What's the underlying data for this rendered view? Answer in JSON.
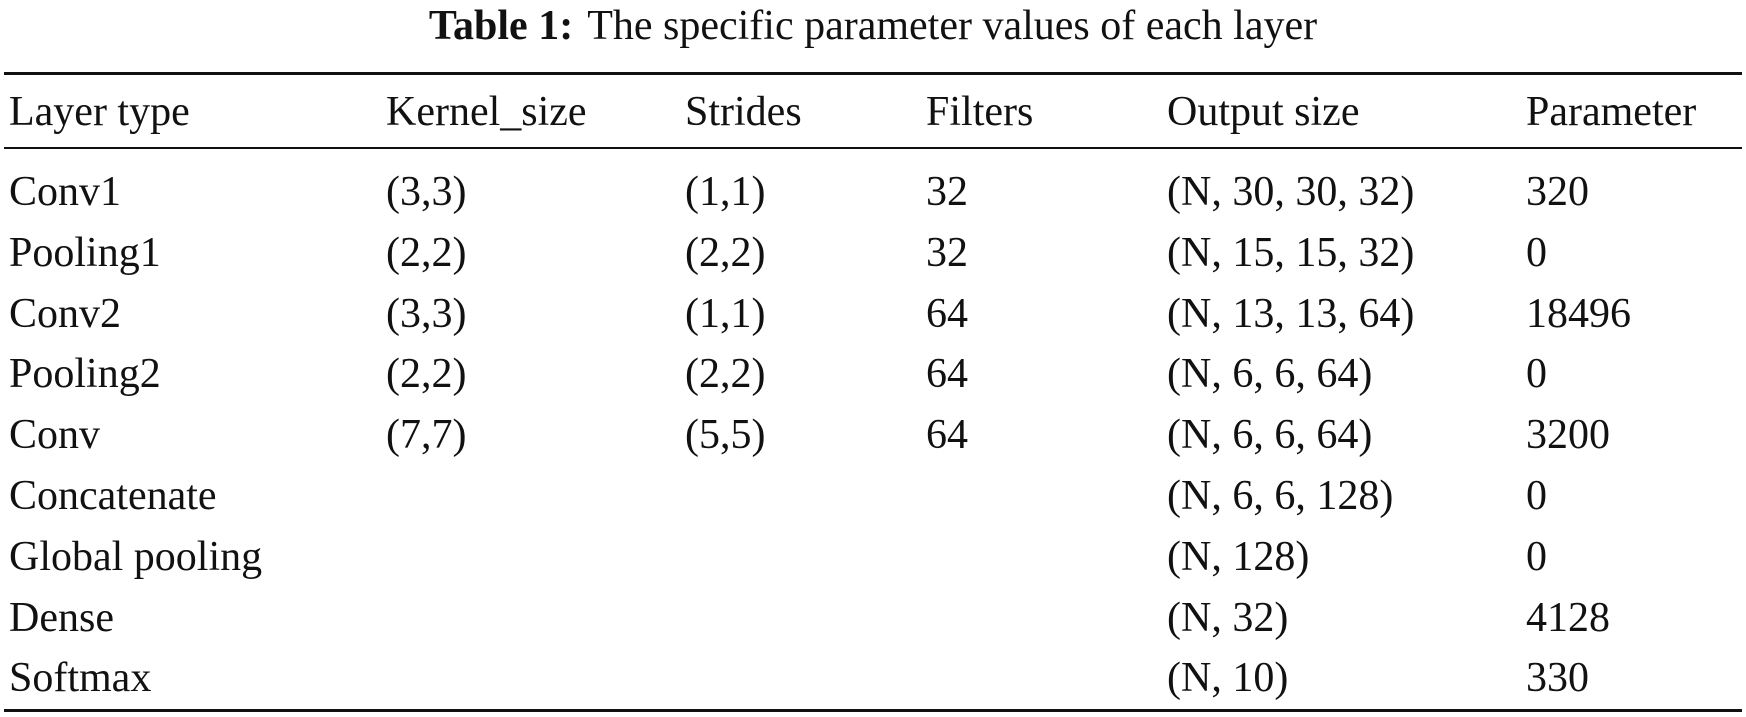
{
  "table": {
    "label": "Table 1:",
    "caption": "The specific parameter values of each layer",
    "columns": [
      "Layer type",
      "Kernel_size",
      "Strides",
      "Filters",
      "Output size",
      "Parameter"
    ],
    "rows": [
      [
        "Conv1",
        "(3,3)",
        "(1,1)",
        32,
        "(N, 30, 30, 32)",
        320
      ],
      [
        "Pooling1",
        "(2,2)",
        "(2,2)",
        32,
        "(N, 15, 15, 32)",
        0
      ],
      [
        "Conv2",
        "(3,3)",
        "(1,1)",
        64,
        "(N, 13, 13, 64)",
        18496
      ],
      [
        "Pooling2",
        "(2,2)",
        "(2,2)",
        64,
        "(N, 6, 6, 64)",
        0
      ],
      [
        "Conv",
        "(7,7)",
        "(5,5)",
        64,
        "(N, 6, 6, 64)",
        3200
      ],
      [
        "Concatenate",
        null,
        null,
        null,
        "(N, 6, 6, 128)",
        0
      ],
      [
        "Global pooling",
        null,
        null,
        null,
        "(N, 128)",
        0
      ],
      [
        "Dense",
        null,
        null,
        null,
        "(N, 32)",
        4128
      ],
      [
        "Softmax",
        null,
        null,
        null,
        "(N, 10)",
        330
      ]
    ]
  }
}
